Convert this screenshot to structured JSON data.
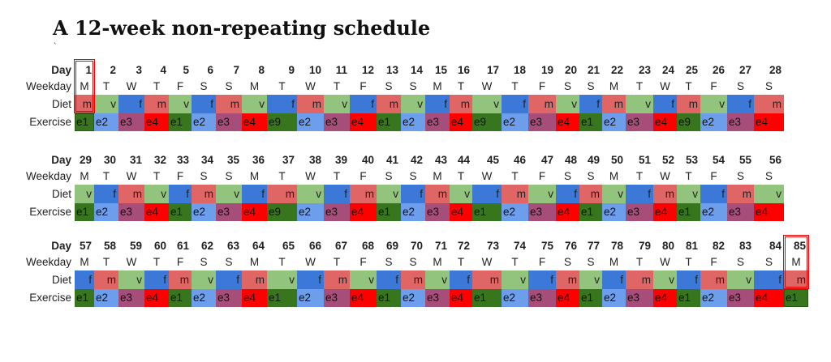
{
  "title": "A 12-week non-repeating schedule",
  "subtitle_mark": "`",
  "row_labels": {
    "day": "Day",
    "weekday": "Weekday",
    "diet": "Diet",
    "exercise": "Exercise"
  },
  "colors": {
    "m": "#e06666",
    "v": "#93c47d",
    "f": "#3c78d8",
    "e1": "#38761d",
    "e2": "#6d9eeb",
    "e3": "#a64d79",
    "e4": "#ff0000",
    "e9": "#38761d"
  },
  "blocks": [
    {
      "days": [
        "1",
        "2",
        "3",
        "4",
        "5",
        "6",
        "7",
        "8",
        "9",
        "10",
        "11",
        "12",
        "13",
        "14",
        "15",
        "16",
        "17",
        "18",
        "19",
        "20",
        "21",
        "22",
        "23",
        "24",
        "25",
        "26",
        "27",
        "28"
      ],
      "weekdays": [
        "M",
        "T",
        "W",
        "T",
        "F",
        "S",
        "S",
        "M",
        "T",
        "W",
        "T",
        "F",
        "S",
        "S",
        "M",
        "T",
        "W",
        "T",
        "F",
        "S",
        "S",
        "M",
        "T",
        "W",
        "T",
        "F",
        "S",
        "S"
      ],
      "diet": [
        "m",
        "v",
        "f",
        "m",
        "v",
        "f",
        "m",
        "v",
        "f",
        "m",
        "v",
        "f",
        "m",
        "v",
        "f",
        "m",
        "v",
        "f",
        "m",
        "v",
        "f",
        "m",
        "v",
        "f",
        "m",
        "v",
        "f",
        "m"
      ],
      "exercise": [
        "e1",
        "e2",
        "e3",
        "e4",
        "e1",
        "e2",
        "e3",
        "e4",
        "e9",
        "e2",
        "e3",
        "e4",
        "e1",
        "e2",
        "e3",
        "e4",
        "e9",
        "e2",
        "e3",
        "e4",
        "e1",
        "e2",
        "e3",
        "e4",
        "e9",
        "e2",
        "e3",
        "e4"
      ],
      "selected_index": 0
    },
    {
      "days": [
        "29",
        "30",
        "31",
        "32",
        "33",
        "34",
        "35",
        "36",
        "37",
        "38",
        "39",
        "40",
        "41",
        "42",
        "43",
        "44",
        "45",
        "46",
        "47",
        "48",
        "49",
        "50",
        "51",
        "52",
        "53",
        "54",
        "55",
        "56"
      ],
      "weekdays": [
        "M",
        "T",
        "W",
        "T",
        "F",
        "S",
        "S",
        "M",
        "T",
        "W",
        "T",
        "F",
        "S",
        "S",
        "M",
        "T",
        "W",
        "T",
        "F",
        "S",
        "S",
        "M",
        "T",
        "W",
        "T",
        "F",
        "S",
        "S"
      ],
      "diet": [
        "v",
        "f",
        "m",
        "v",
        "f",
        "m",
        "v",
        "f",
        "m",
        "v",
        "f",
        "m",
        "v",
        "f",
        "m",
        "v",
        "f",
        "m",
        "v",
        "f",
        "m",
        "v",
        "f",
        "m",
        "v",
        "f",
        "m",
        "v"
      ],
      "exercise": [
        "e1",
        "e2",
        "e3",
        "e4",
        "e1",
        "e2",
        "e3",
        "e4",
        "e9",
        "e2",
        "e3",
        "e4",
        "e1",
        "e2",
        "e3",
        "e4",
        "e1",
        "e2",
        "e3",
        "e4",
        "e1",
        "e2",
        "e3",
        "e4",
        "e1",
        "e2",
        "e3",
        "e4"
      ]
    },
    {
      "days": [
        "57",
        "58",
        "59",
        "60",
        "61",
        "62",
        "63",
        "64",
        "65",
        "66",
        "67",
        "68",
        "69",
        "70",
        "71",
        "72",
        "73",
        "74",
        "75",
        "76",
        "77",
        "78",
        "79",
        "80",
        "81",
        "82",
        "83",
        "84",
        "85"
      ],
      "weekdays": [
        "M",
        "T",
        "W",
        "T",
        "F",
        "S",
        "S",
        "M",
        "T",
        "W",
        "T",
        "F",
        "S",
        "S",
        "M",
        "T",
        "W",
        "T",
        "F",
        "S",
        "S",
        "M",
        "T",
        "W",
        "T",
        "F",
        "S",
        "S",
        "M"
      ],
      "diet": [
        "f",
        "m",
        "v",
        "f",
        "m",
        "v",
        "f",
        "m",
        "v",
        "f",
        "m",
        "v",
        "f",
        "m",
        "v",
        "f",
        "m",
        "v",
        "f",
        "m",
        "v",
        "f",
        "m",
        "v",
        "f",
        "m",
        "v",
        "f",
        "m"
      ],
      "exercise": [
        "e1",
        "e2",
        "e3",
        "e4",
        "e1",
        "e2",
        "e3",
        "e4",
        "e1",
        "e2",
        "e3",
        "e4",
        "e1",
        "e2",
        "e3",
        "e4",
        "e1",
        "e2",
        "e3",
        "e4",
        "e1",
        "e2",
        "e3",
        "e4",
        "e1",
        "e2",
        "e3",
        "e4",
        "e1"
      ],
      "selected_index": 28
    }
  ]
}
